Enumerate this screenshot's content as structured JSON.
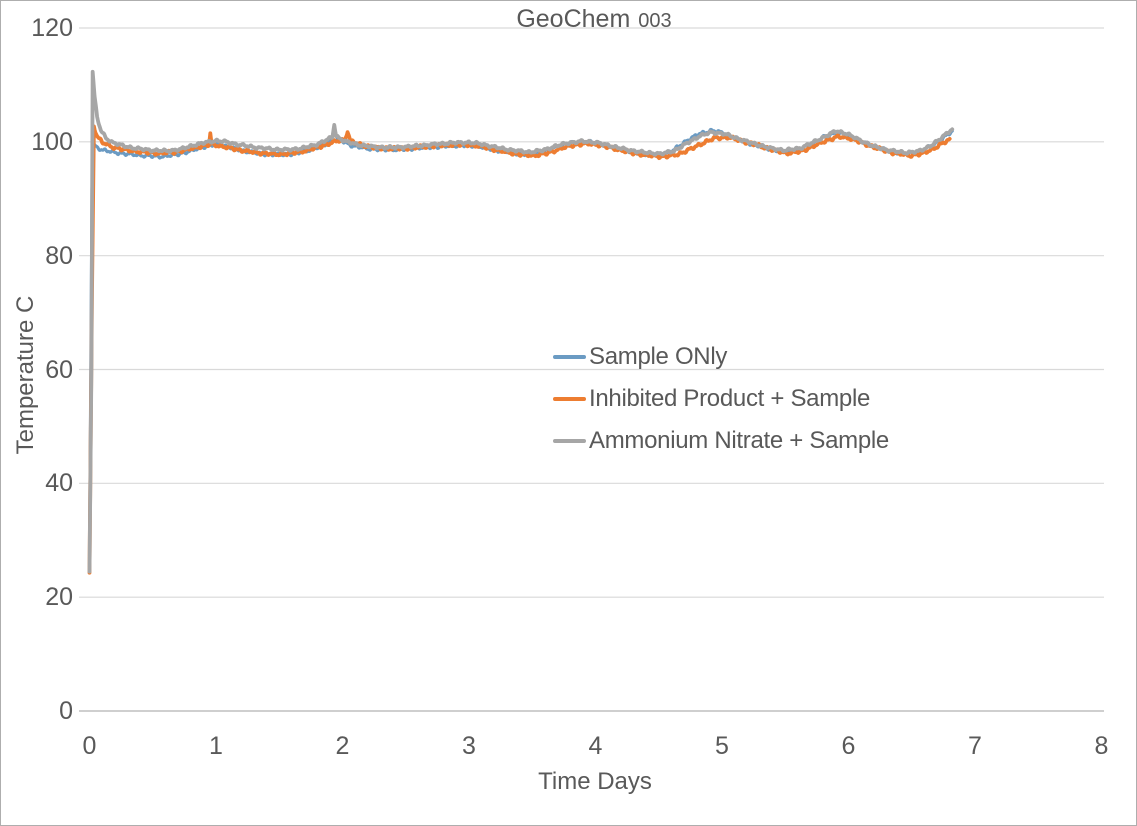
{
  "chart_data": {
    "type": "line",
    "title": "GeoChem 003",
    "title_parts": {
      "main": "GeoChem",
      "suffix": "003"
    },
    "xlabel": "Time Days",
    "ylabel": "Temperature C",
    "xlim": [
      0,
      8
    ],
    "ylim": [
      0,
      120
    ],
    "xticks": [
      0,
      1,
      2,
      3,
      4,
      5,
      6,
      7,
      8
    ],
    "yticks": [
      0,
      20,
      40,
      60,
      80,
      100,
      120
    ],
    "grid": "horizontal-only",
    "legend_position": "inside-plot-center-right",
    "text_color": "#595959",
    "grid_color": "#d9d9d9",
    "axis_color": "#bfbfbf",
    "background": "#ffffff",
    "series": [
      {
        "name": "Sample ONly",
        "color": "#6b9bc3",
        "noise_amplitude": 0.32,
        "points": [
          [
            0.0,
            24.5
          ],
          [
            0.02,
            92.0
          ],
          [
            0.03,
            99.6
          ],
          [
            0.06,
            99.0
          ],
          [
            0.1,
            98.6
          ],
          [
            0.18,
            98.2
          ],
          [
            0.28,
            97.9
          ],
          [
            0.42,
            97.6
          ],
          [
            0.55,
            97.4
          ],
          [
            0.68,
            97.7
          ],
          [
            0.8,
            98.4
          ],
          [
            0.9,
            99.1
          ],
          [
            1.0,
            99.6
          ],
          [
            1.1,
            99.1
          ],
          [
            1.22,
            98.4
          ],
          [
            1.35,
            97.9
          ],
          [
            1.5,
            97.7
          ],
          [
            1.62,
            97.9
          ],
          [
            1.75,
            98.6
          ],
          [
            1.85,
            99.4
          ],
          [
            1.93,
            100.4
          ],
          [
            1.98,
            100.3
          ],
          [
            2.08,
            99.3
          ],
          [
            2.2,
            98.8
          ],
          [
            2.35,
            98.6
          ],
          [
            2.5,
            98.7
          ],
          [
            2.65,
            99.0
          ],
          [
            2.8,
            99.2
          ],
          [
            2.95,
            99.4
          ],
          [
            3.08,
            99.2
          ],
          [
            3.2,
            98.6
          ],
          [
            3.35,
            98.0
          ],
          [
            3.48,
            97.8
          ],
          [
            3.58,
            98.2
          ],
          [
            3.68,
            99.0
          ],
          [
            3.78,
            99.7
          ],
          [
            3.9,
            100.0
          ],
          [
            4.0,
            99.9
          ],
          [
            4.12,
            99.2
          ],
          [
            4.25,
            98.4
          ],
          [
            4.4,
            97.8
          ],
          [
            4.52,
            97.6
          ],
          [
            4.62,
            98.6
          ],
          [
            4.72,
            100.2
          ],
          [
            4.82,
            101.4
          ],
          [
            4.92,
            102.0
          ],
          [
            5.02,
            101.5
          ],
          [
            5.12,
            100.5
          ],
          [
            5.25,
            99.5
          ],
          [
            5.38,
            98.7
          ],
          [
            5.5,
            98.3
          ],
          [
            5.62,
            98.7
          ],
          [
            5.72,
            99.8
          ],
          [
            5.82,
            101.0
          ],
          [
            5.9,
            101.6
          ],
          [
            5.98,
            101.3
          ],
          [
            6.08,
            100.3
          ],
          [
            6.2,
            99.2
          ],
          [
            6.32,
            98.4
          ],
          [
            6.45,
            97.9
          ],
          [
            6.55,
            98.2
          ],
          [
            6.65,
            99.2
          ],
          [
            6.72,
            100.2
          ],
          [
            6.78,
            101.2
          ],
          [
            6.82,
            101.8
          ]
        ]
      },
      {
        "name": "Inhibited Product + Sample",
        "color": "#ed7d31",
        "noise_amplitude": 0.35,
        "points": [
          [
            0.0,
            24.3
          ],
          [
            0.02,
            74.0
          ],
          [
            0.035,
            102.8
          ],
          [
            0.06,
            101.0
          ],
          [
            0.1,
            99.9
          ],
          [
            0.18,
            99.1
          ],
          [
            0.28,
            98.6
          ],
          [
            0.42,
            98.2
          ],
          [
            0.55,
            98.0
          ],
          [
            0.68,
            98.2
          ],
          [
            0.8,
            98.8
          ],
          [
            0.9,
            99.3
          ],
          [
            0.945,
            99.5
          ],
          [
            0.955,
            101.4
          ],
          [
            0.965,
            99.6
          ],
          [
            1.05,
            99.2
          ],
          [
            1.18,
            98.6
          ],
          [
            1.32,
            98.1
          ],
          [
            1.48,
            97.8
          ],
          [
            1.6,
            98.0
          ],
          [
            1.72,
            98.5
          ],
          [
            1.84,
            99.3
          ],
          [
            1.95,
            100.1
          ],
          [
            2.02,
            100.4
          ],
          [
            2.04,
            102.0
          ],
          [
            2.06,
            100.2
          ],
          [
            2.15,
            99.4
          ],
          [
            2.28,
            98.9
          ],
          [
            2.42,
            98.8
          ],
          [
            2.58,
            99.0
          ],
          [
            2.72,
            99.3
          ],
          [
            2.88,
            99.5
          ],
          [
            3.0,
            99.5
          ],
          [
            3.12,
            99.1
          ],
          [
            3.25,
            98.4
          ],
          [
            3.4,
            97.8
          ],
          [
            3.52,
            97.6
          ],
          [
            3.62,
            98.0
          ],
          [
            3.72,
            98.8
          ],
          [
            3.82,
            99.4
          ],
          [
            3.92,
            99.7
          ],
          [
            4.02,
            99.5
          ],
          [
            4.15,
            98.8
          ],
          [
            4.28,
            98.1
          ],
          [
            4.42,
            97.6
          ],
          [
            4.55,
            97.4
          ],
          [
            4.65,
            97.8
          ],
          [
            4.75,
            98.7
          ],
          [
            4.85,
            99.8
          ],
          [
            4.95,
            100.7
          ],
          [
            5.05,
            100.8
          ],
          [
            5.15,
            100.2
          ],
          [
            5.28,
            99.4
          ],
          [
            5.4,
            98.6
          ],
          [
            5.52,
            98.0
          ],
          [
            5.62,
            98.3
          ],
          [
            5.72,
            99.2
          ],
          [
            5.82,
            100.2
          ],
          [
            5.92,
            100.9
          ],
          [
            6.0,
            100.7
          ],
          [
            6.1,
            99.9
          ],
          [
            6.22,
            98.9
          ],
          [
            6.35,
            98.1
          ],
          [
            6.48,
            97.6
          ],
          [
            6.58,
            97.9
          ],
          [
            6.68,
            98.9
          ],
          [
            6.75,
            99.8
          ],
          [
            6.8,
            100.4
          ]
        ]
      },
      {
        "name": "Ammonium Nitrate + Sample",
        "color": "#a6a6a6",
        "noise_amplitude": 0.28,
        "points": [
          [
            0.0,
            24.5
          ],
          [
            0.015,
            60.0
          ],
          [
            0.025,
            112.3
          ],
          [
            0.04,
            108.0
          ],
          [
            0.06,
            104.3
          ],
          [
            0.09,
            102.0
          ],
          [
            0.13,
            100.7
          ],
          [
            0.18,
            99.9
          ],
          [
            0.25,
            99.4
          ],
          [
            0.35,
            98.9
          ],
          [
            0.5,
            98.5
          ],
          [
            0.62,
            98.4
          ],
          [
            0.72,
            98.7
          ],
          [
            0.82,
            99.4
          ],
          [
            0.92,
            99.9
          ],
          [
            1.0,
            100.2
          ],
          [
            1.08,
            100.0
          ],
          [
            1.18,
            99.5
          ],
          [
            1.32,
            99.0
          ],
          [
            1.45,
            98.7
          ],
          [
            1.58,
            98.6
          ],
          [
            1.68,
            98.9
          ],
          [
            1.78,
            99.4
          ],
          [
            1.87,
            100.3
          ],
          [
            1.92,
            100.8
          ],
          [
            1.935,
            103.1
          ],
          [
            1.95,
            101.0
          ],
          [
            2.02,
            100.1
          ],
          [
            2.12,
            99.5
          ],
          [
            2.25,
            99.1
          ],
          [
            2.4,
            99.0
          ],
          [
            2.55,
            99.2
          ],
          [
            2.7,
            99.5
          ],
          [
            2.85,
            99.8
          ],
          [
            3.0,
            99.9
          ],
          [
            3.1,
            99.6
          ],
          [
            3.22,
            99.0
          ],
          [
            3.35,
            98.5
          ],
          [
            3.48,
            98.2
          ],
          [
            3.58,
            98.5
          ],
          [
            3.68,
            99.2
          ],
          [
            3.78,
            99.8
          ],
          [
            3.9,
            100.1
          ],
          [
            4.0,
            99.9
          ],
          [
            4.12,
            99.3
          ],
          [
            4.25,
            98.6
          ],
          [
            4.4,
            98.1
          ],
          [
            4.52,
            97.9
          ],
          [
            4.62,
            98.4
          ],
          [
            4.72,
            99.7
          ],
          [
            4.82,
            101.0
          ],
          [
            4.92,
            101.7
          ],
          [
            5.02,
            101.4
          ],
          [
            5.12,
            100.6
          ],
          [
            5.25,
            99.7
          ],
          [
            5.38,
            98.9
          ],
          [
            5.5,
            98.5
          ],
          [
            5.62,
            98.9
          ],
          [
            5.72,
            99.9
          ],
          [
            5.82,
            101.0
          ],
          [
            5.9,
            101.9
          ],
          [
            5.98,
            101.5
          ],
          [
            6.08,
            100.4
          ],
          [
            6.2,
            99.2
          ],
          [
            6.32,
            98.5
          ],
          [
            6.45,
            98.1
          ],
          [
            6.55,
            98.3
          ],
          [
            6.65,
            99.3
          ],
          [
            6.72,
            100.4
          ],
          [
            6.78,
            101.6
          ],
          [
            6.82,
            102.2
          ]
        ]
      }
    ]
  }
}
